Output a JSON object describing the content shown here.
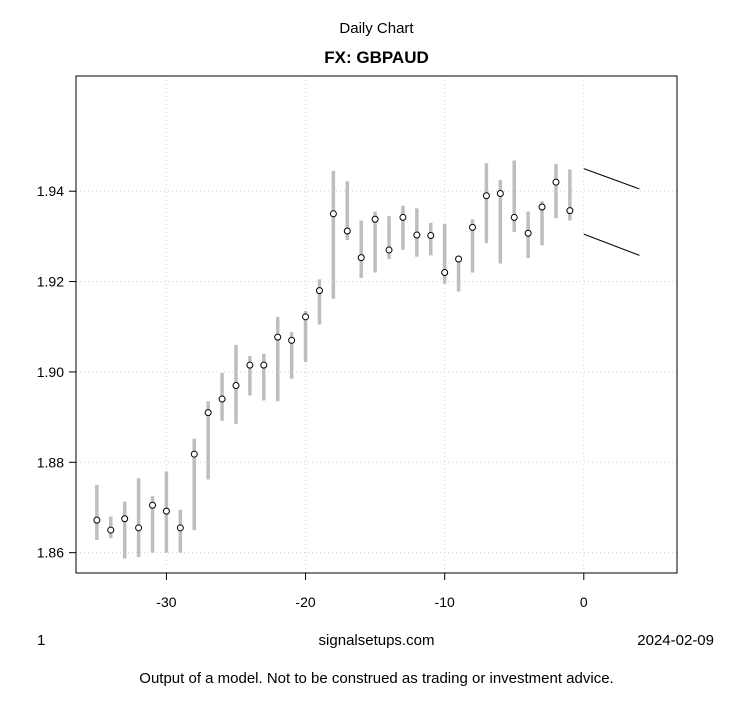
{
  "header": {
    "subtitle": "Daily Chart",
    "title": "FX: GBPAUD"
  },
  "footer": {
    "left": "1",
    "center": "signalsetups.com",
    "right": "2024-02-09",
    "disclaimer": "Output of a model. Not to be construed as trading or investment advice."
  },
  "chart_data": {
    "type": "line",
    "subtype": "high-low range with close markers",
    "title": "FX: GBPAUD",
    "subtitle": "Daily Chart",
    "xlabel": "",
    "ylabel": "",
    "xlim": [
      -36.5,
      6.7
    ],
    "ylim": [
      1.8555,
      1.9655
    ],
    "x_ticks": [
      -30,
      -20,
      -10,
      0
    ],
    "y_ticks": [
      1.86,
      1.88,
      1.9,
      1.92,
      1.94
    ],
    "x_tick_labels": [
      "-30",
      "-20",
      "-10",
      "0"
    ],
    "y_tick_labels": [
      "1.86",
      "1.88",
      "1.90",
      "1.92",
      "1.94"
    ],
    "grid": true,
    "colors": {
      "range_bar": "#bebebe",
      "marker_fill": "#ffffff",
      "marker_stroke": "#000000",
      "grid": "#d3d3d3",
      "forecast_line": "#000000"
    },
    "bars": [
      {
        "x": -35,
        "low": 1.8628,
        "high": 1.875,
        "close": 1.8672
      },
      {
        "x": -34,
        "low": 1.8632,
        "high": 1.868,
        "close": 1.865
      },
      {
        "x": -33,
        "low": 1.8587,
        "high": 1.8713,
        "close": 1.8675
      },
      {
        "x": -32,
        "low": 1.859,
        "high": 1.8765,
        "close": 1.8655
      },
      {
        "x": -31,
        "low": 1.86,
        "high": 1.8725,
        "close": 1.8705
      },
      {
        "x": -30,
        "low": 1.86,
        "high": 1.878,
        "close": 1.8692
      },
      {
        "x": -29,
        "low": 1.86,
        "high": 1.8695,
        "close": 1.8655
      },
      {
        "x": -28,
        "low": 1.865,
        "high": 1.8852,
        "close": 1.8818
      },
      {
        "x": -27,
        "low": 1.8762,
        "high": 1.8935,
        "close": 1.891
      },
      {
        "x": -26,
        "low": 1.8892,
        "high": 1.8998,
        "close": 1.894
      },
      {
        "x": -25,
        "low": 1.8885,
        "high": 1.906,
        "close": 1.897
      },
      {
        "x": -24,
        "low": 1.8948,
        "high": 1.9035,
        "close": 1.9015
      },
      {
        "x": -23,
        "low": 1.8937,
        "high": 1.904,
        "close": 1.9015
      },
      {
        "x": -22,
        "low": 1.8935,
        "high": 1.9122,
        "close": 1.9077
      },
      {
        "x": -21,
        "low": 1.8985,
        "high": 1.9088,
        "close": 1.907
      },
      {
        "x": -20,
        "low": 1.9022,
        "high": 1.9135,
        "close": 1.9122
      },
      {
        "x": -19,
        "low": 1.9105,
        "high": 1.9205,
        "close": 1.918
      },
      {
        "x": -18,
        "low": 1.9162,
        "high": 1.9445,
        "close": 1.935
      },
      {
        "x": -17,
        "low": 1.9292,
        "high": 1.9422,
        "close": 1.9312
      },
      {
        "x": -16,
        "low": 1.9208,
        "high": 1.9335,
        "close": 1.9253
      },
      {
        "x": -15,
        "low": 1.922,
        "high": 1.9355,
        "close": 1.9338
      },
      {
        "x": -14,
        "low": 1.925,
        "high": 1.9345,
        "close": 1.927
      },
      {
        "x": -13,
        "low": 1.927,
        "high": 1.9368,
        "close": 1.9342
      },
      {
        "x": -12,
        "low": 1.9255,
        "high": 1.9362,
        "close": 1.9303
      },
      {
        "x": -11,
        "low": 1.9258,
        "high": 1.933,
        "close": 1.9302
      },
      {
        "x": -10,
        "low": 1.9195,
        "high": 1.9328,
        "close": 1.922
      },
      {
        "x": -9,
        "low": 1.9178,
        "high": 1.9255,
        "close": 1.925
      },
      {
        "x": -8,
        "low": 1.922,
        "high": 1.9338,
        "close": 1.932
      },
      {
        "x": -7,
        "low": 1.9285,
        "high": 1.9462,
        "close": 1.939
      },
      {
        "x": -6,
        "low": 1.924,
        "high": 1.9425,
        "close": 1.9395
      },
      {
        "x": -5,
        "low": 1.931,
        "high": 1.9468,
        "close": 1.9342
      },
      {
        "x": -4,
        "low": 1.9252,
        "high": 1.9355,
        "close": 1.9307
      },
      {
        "x": -3,
        "low": 1.928,
        "high": 1.9378,
        "close": 1.9365
      },
      {
        "x": -2,
        "low": 1.934,
        "high": 1.946,
        "close": 1.942
      },
      {
        "x": -1,
        "low": 1.9335,
        "high": 1.9448,
        "close": 1.9357
      }
    ],
    "forecast_lines": [
      {
        "x": [
          0,
          4
        ],
        "y": [
          1.945,
          1.9405
        ]
      },
      {
        "x": [
          0,
          4
        ],
        "y": [
          1.9305,
          1.9258
        ]
      }
    ]
  }
}
